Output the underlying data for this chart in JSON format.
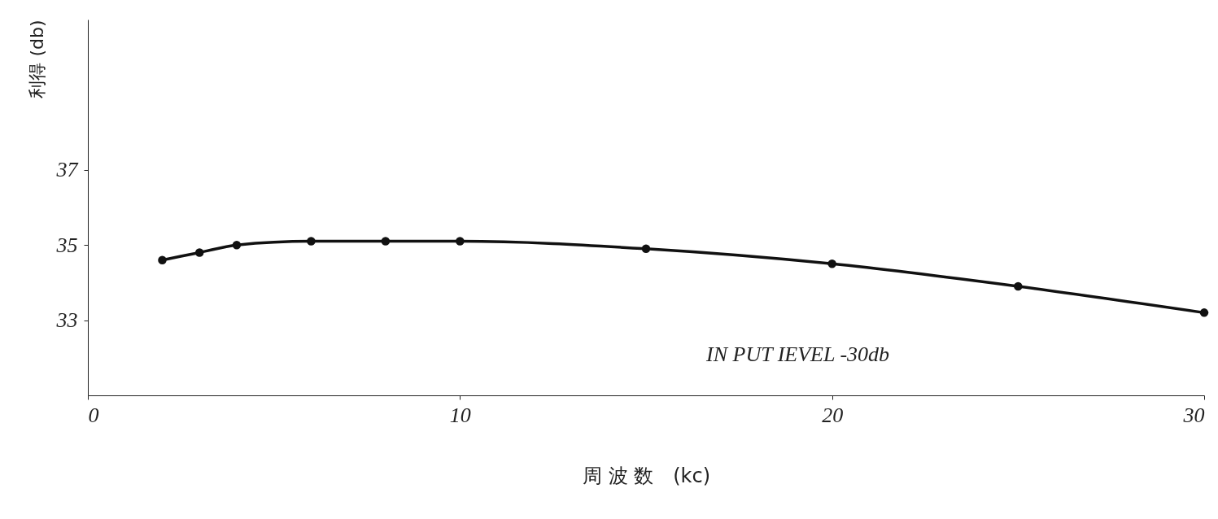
{
  "chart_data": {
    "type": "line",
    "xlabel": "周 波 数　(kc)",
    "ylabel": "利得 (db)",
    "x": [
      2,
      3,
      4,
      6,
      8,
      10,
      15,
      20,
      25,
      30
    ],
    "series": [
      {
        "color": "#111111",
        "values": [
          34.6,
          34.8,
          35.0,
          35.1,
          35.1,
          35.1,
          34.9,
          34.5,
          33.9,
          33.2
        ]
      }
    ],
    "xlim": [
      0,
      30
    ],
    "xticks": [
      0,
      10,
      20,
      30
    ],
    "ylim": [
      31,
      41
    ],
    "yticks": [
      33,
      35,
      37
    ],
    "marker": "circle",
    "line_style": "solid",
    "grid": false,
    "annotations": [
      "IN PUT IEVEL -30db"
    ]
  }
}
